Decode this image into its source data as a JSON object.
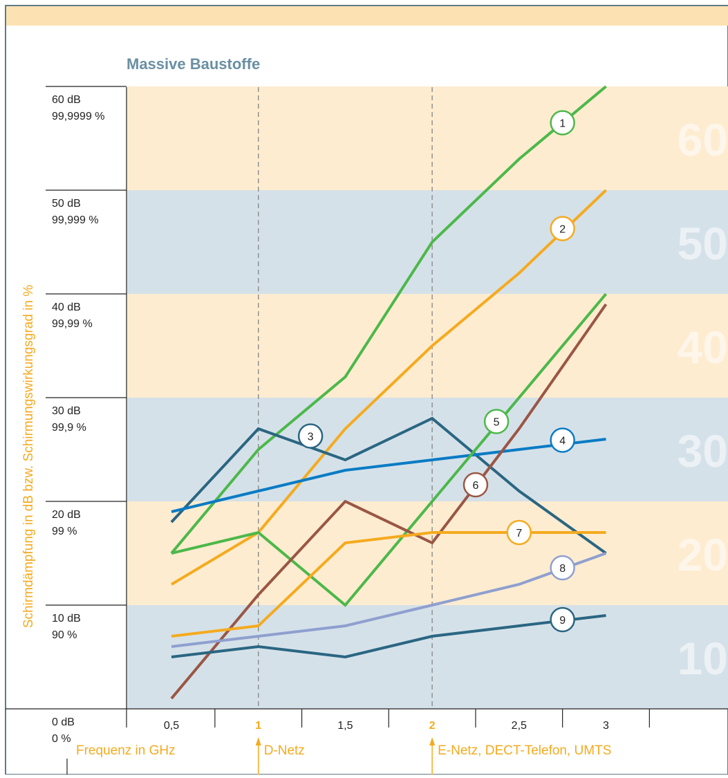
{
  "chart_data": {
    "type": "line",
    "title": "Massive Baustoffe",
    "ylabel": "Schirmdämpfung in dB bzw. Schirmungswirkungsgrad in %",
    "xlabel": "Frequenz in GHz",
    "x": [
      0.5,
      1,
      1.5,
      2,
      2.5,
      3
    ],
    "x_tick_labels": [
      "0,5",
      "1",
      "1,5",
      "2",
      "2,5",
      "3"
    ],
    "highlighted_ticks": [
      "1",
      "2"
    ],
    "xlim": [
      0.25,
      3.5
    ],
    "ylim": [
      -2,
      63
    ],
    "y_tick_labels": [
      {
        "db": "0 dB",
        "pct": "0 %",
        "value": 0
      },
      {
        "db": "10 dB",
        "pct": "90 %",
        "value": 10
      },
      {
        "db": "20 dB",
        "pct": "99 %",
        "value": 20
      },
      {
        "db": "30 dB",
        "pct": "99,9 %",
        "value": 30
      },
      {
        "db": "40 dB",
        "pct": "99,99 %",
        "value": 40
      },
      {
        "db": "50 dB",
        "pct": "99,999 %",
        "value": 50
      },
      {
        "db": "60 dB",
        "pct": "99,9999 %",
        "value": 60
      }
    ],
    "band_labels": [
      "10",
      "20",
      "30",
      "40",
      "50",
      "60"
    ],
    "markers": [
      {
        "x": 1,
        "label": "D-Netz"
      },
      {
        "x": 2,
        "label": "E-Netz, DECT-Telefon, UMTS"
      }
    ],
    "series": [
      {
        "label": "1",
        "color": "#4cb84a",
        "points": [
          [
            0.5,
            15
          ],
          [
            1,
            25
          ],
          [
            1.5,
            32
          ],
          [
            2,
            45
          ],
          [
            2.5,
            53
          ],
          [
            3,
            60
          ]
        ],
        "badge": [
          2.75,
          56.5
        ]
      },
      {
        "label": "2",
        "color": "#f5aa1e",
        "points": [
          [
            0.5,
            12
          ],
          [
            1,
            17
          ],
          [
            1.5,
            27
          ],
          [
            2,
            35
          ],
          [
            2.5,
            42
          ],
          [
            3,
            50
          ]
        ],
        "badge": [
          2.75,
          46.3
        ]
      },
      {
        "label": "3",
        "color": "#2a6682",
        "points": [
          [
            0.5,
            18
          ],
          [
            1,
            27
          ],
          [
            1.5,
            24
          ],
          [
            2,
            28
          ],
          [
            2.5,
            21
          ],
          [
            3,
            15
          ]
        ],
        "badge": [
          1.3,
          26.3
        ]
      },
      {
        "label": "4",
        "color": "#0a7bc4",
        "points": [
          [
            0.5,
            19
          ],
          [
            1,
            21
          ],
          [
            1.5,
            23
          ],
          [
            2,
            24
          ],
          [
            2.5,
            25
          ],
          [
            3,
            26
          ]
        ],
        "badge": [
          2.75,
          25.9
        ]
      },
      {
        "label": "5",
        "color": "#4cb84a",
        "points": [
          [
            0.5,
            15
          ],
          [
            1,
            17
          ],
          [
            1.5,
            10
          ],
          [
            2,
            20
          ],
          [
            2.5,
            30
          ],
          [
            3,
            40
          ]
        ],
        "badge": [
          2.37,
          27.7
        ]
      },
      {
        "label": "6",
        "color": "#9a5644",
        "points": [
          [
            0.5,
            1
          ],
          [
            1,
            11
          ],
          [
            1.5,
            20
          ],
          [
            2,
            16
          ],
          [
            2.5,
            27
          ],
          [
            3,
            39
          ]
        ],
        "badge": [
          2.25,
          21.6
        ]
      },
      {
        "label": "7",
        "color": "#f5aa1e",
        "points": [
          [
            0.5,
            7
          ],
          [
            1,
            8
          ],
          [
            1.5,
            16
          ],
          [
            2,
            17
          ],
          [
            2.5,
            17
          ],
          [
            3,
            17
          ]
        ],
        "badge": [
          2.5,
          17
        ]
      },
      {
        "label": "8",
        "color": "#8f9fcf",
        "points": [
          [
            0.5,
            6
          ],
          [
            1,
            7
          ],
          [
            1.5,
            8
          ],
          [
            2,
            10
          ],
          [
            2.5,
            12
          ],
          [
            3,
            15
          ]
        ],
        "badge": [
          2.75,
          13.6
        ]
      },
      {
        "label": "9",
        "color": "#2a6682",
        "points": [
          [
            0.5,
            5
          ],
          [
            1,
            6
          ],
          [
            1.5,
            5
          ],
          [
            2,
            7
          ],
          [
            2.5,
            8
          ],
          [
            3,
            9
          ]
        ],
        "badge": [
          2.75,
          8.6
        ]
      }
    ]
  }
}
